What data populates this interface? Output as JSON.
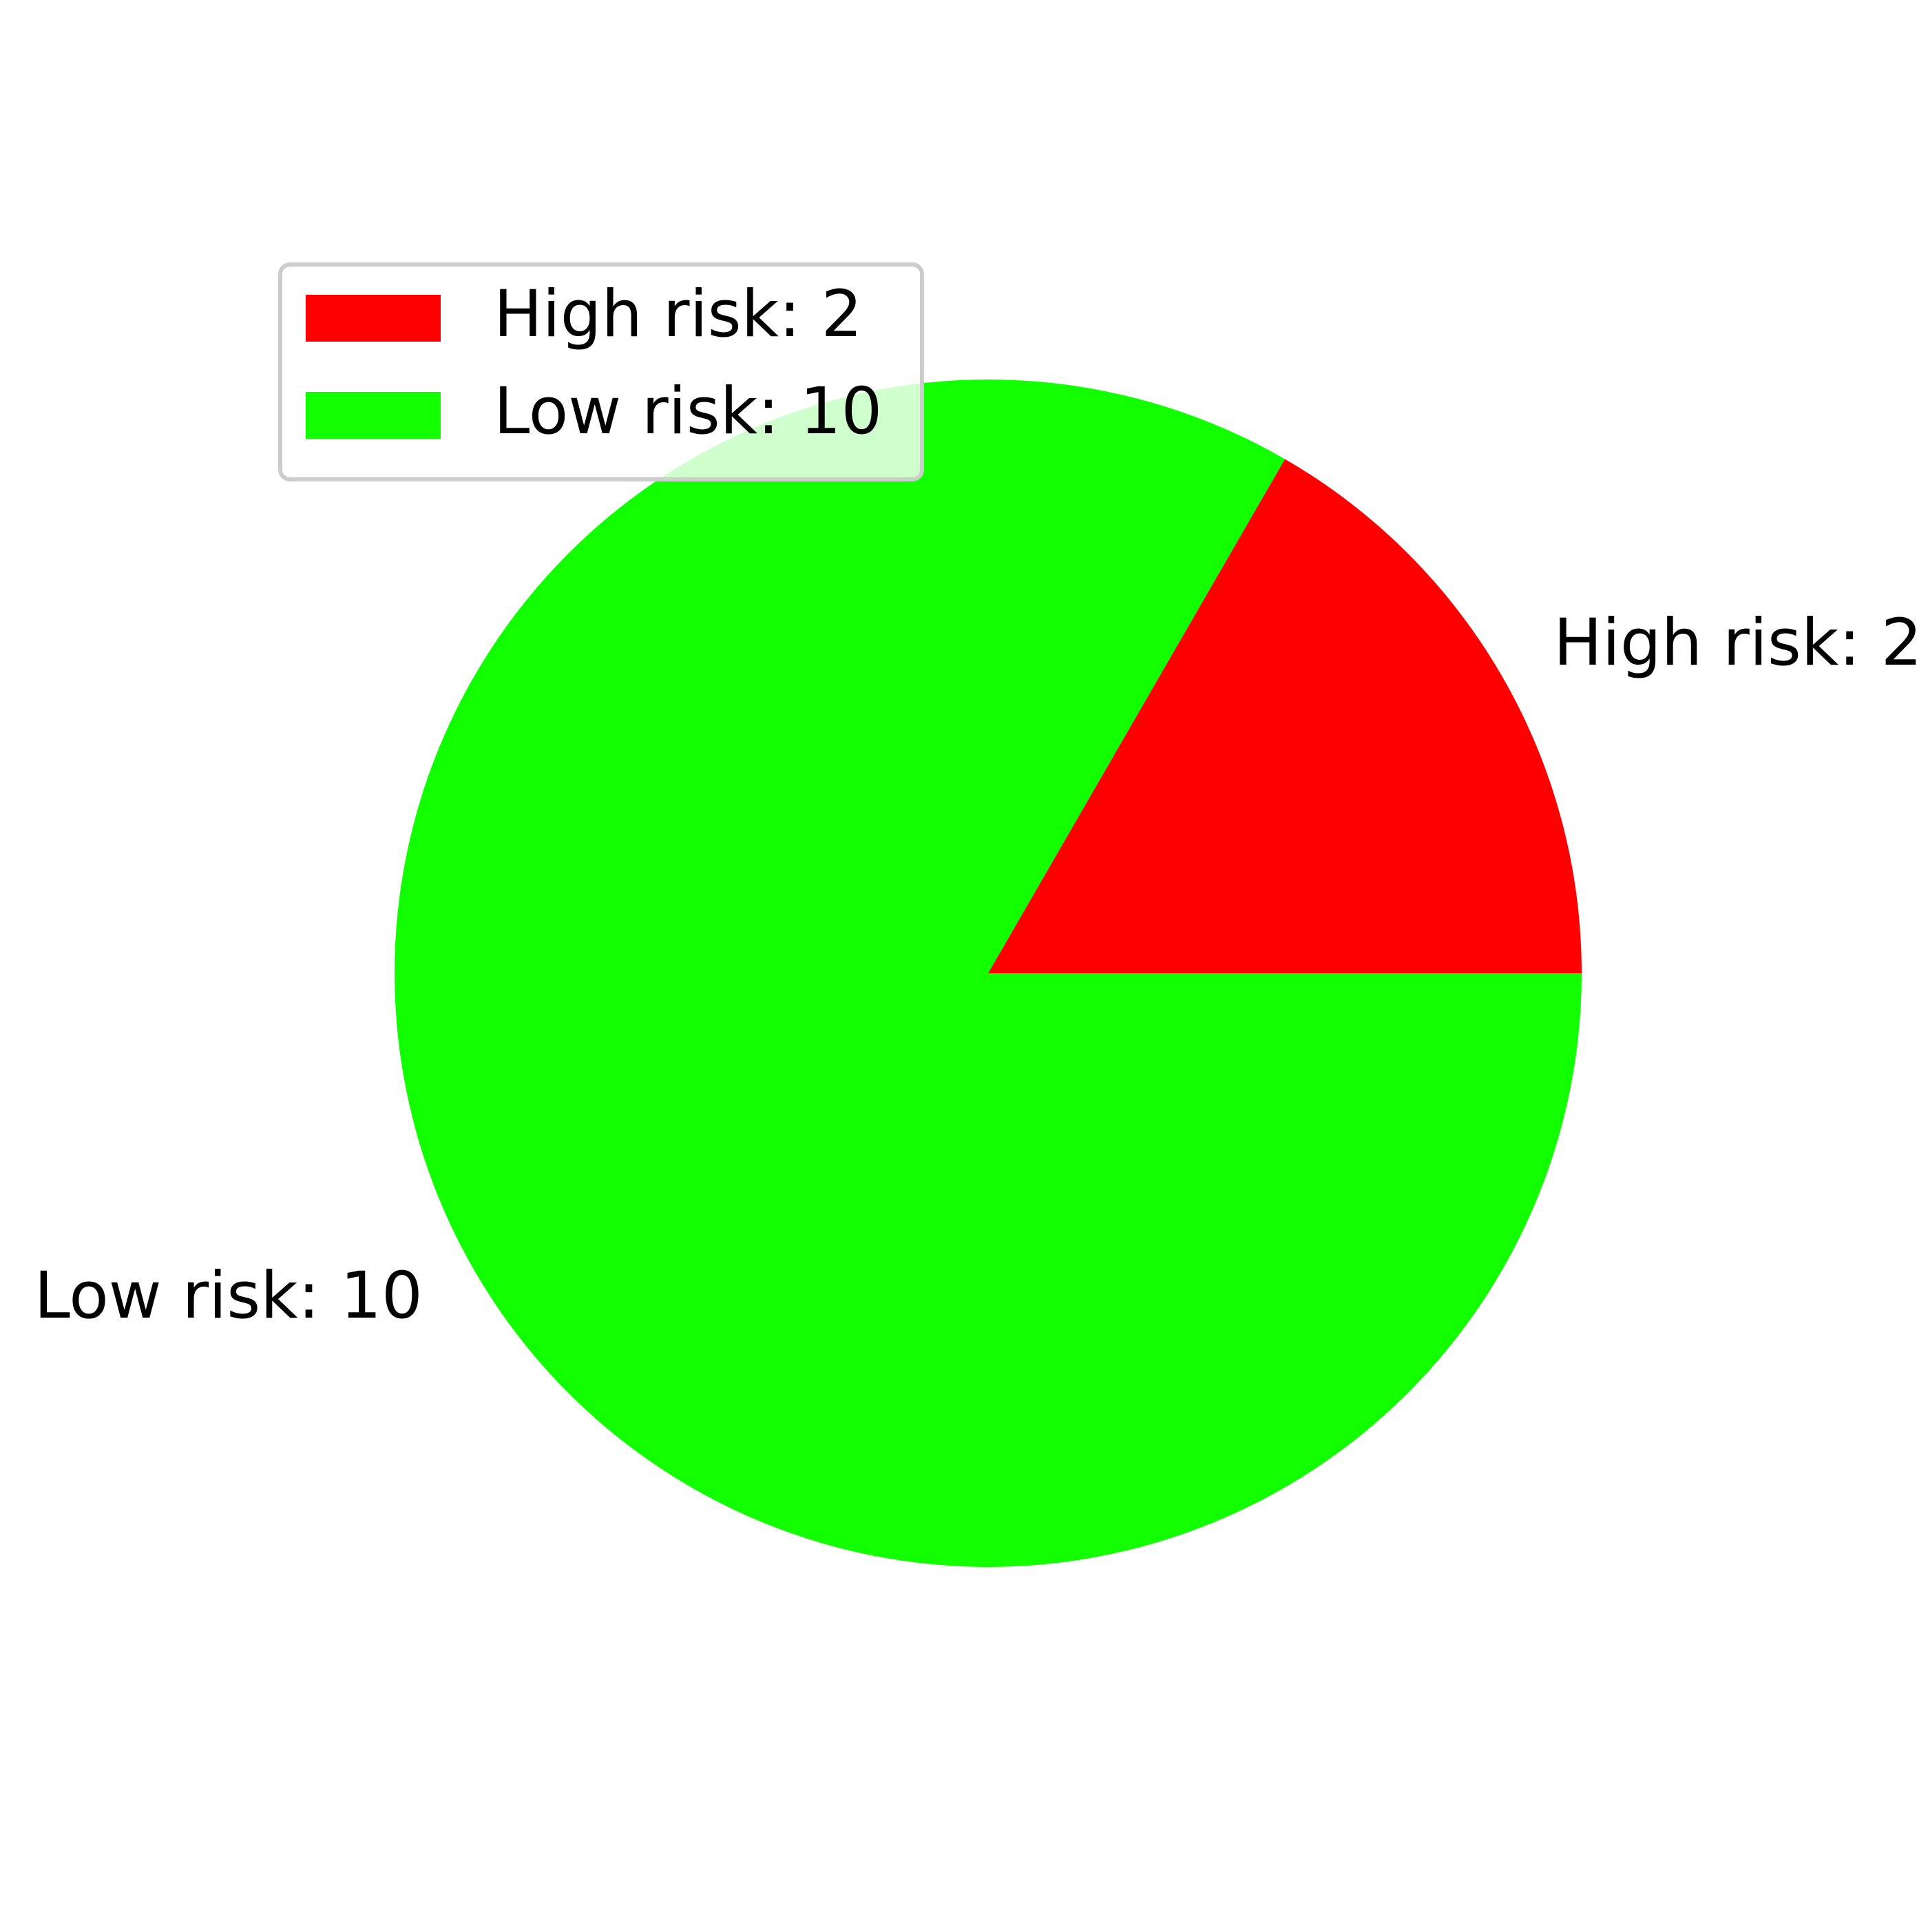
{
  "chart_data": {
    "type": "pie",
    "slices": [
      {
        "label": "High risk: 2",
        "value": 2,
        "color": "#ff0000"
      },
      {
        "label": "Low risk: 10",
        "value": 10,
        "color": "#11ff00"
      }
    ],
    "start_angle_deg": 0,
    "direction": "counterclockwise",
    "legend": {
      "placement": "upper-left",
      "entries": [
        "High risk: 2",
        "Low risk: 10"
      ]
    }
  }
}
